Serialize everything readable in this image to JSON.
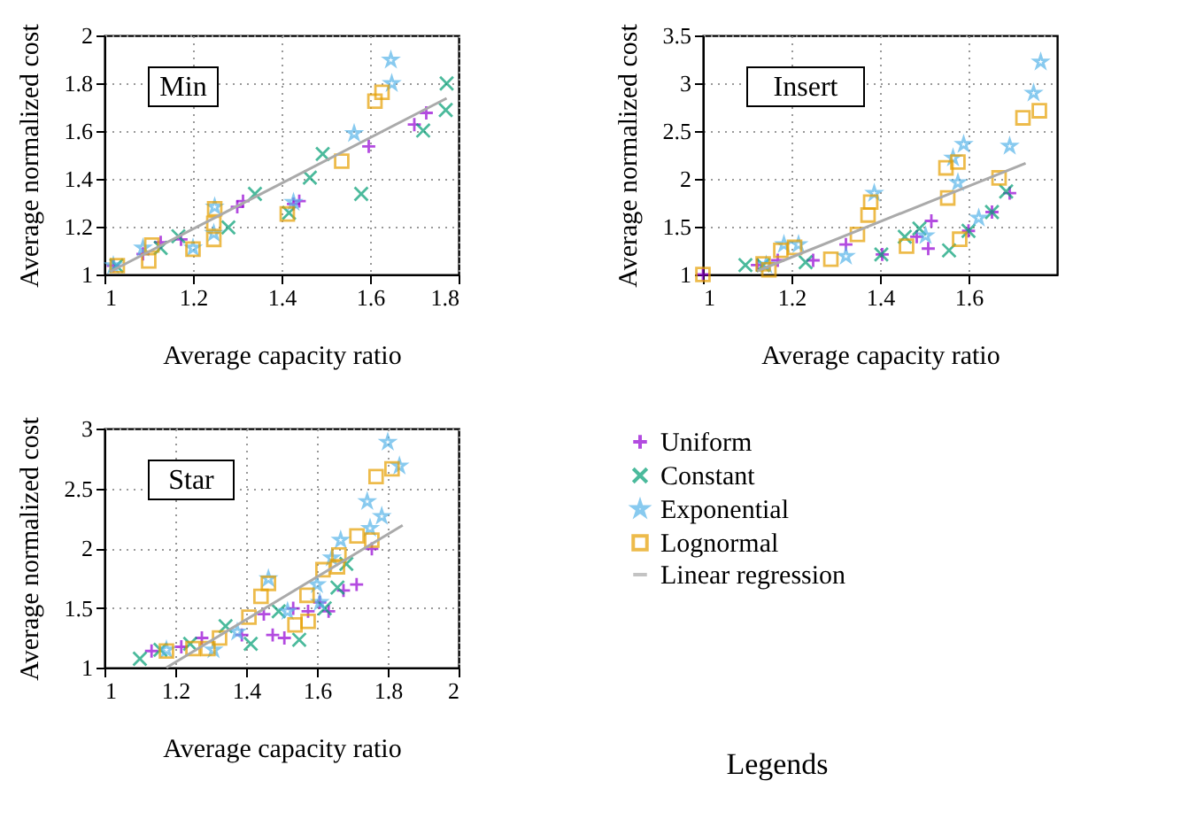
{
  "chart_data": [
    {
      "type": "scatter",
      "annotations": [
        "Min"
      ],
      "xlabel": "Average capacity ratio",
      "ylabel": "Average normalized cost",
      "xlim": [
        1,
        1.8
      ],
      "xticks": [
        1,
        1.2,
        1.4,
        1.6,
        1.8
      ],
      "ylim": [
        1,
        2
      ],
      "yticks": [
        1,
        1.2,
        1.4,
        1.6,
        1.8,
        2
      ],
      "grid": true,
      "series": [
        {
          "color": "#9400d3",
          "marker": "plus",
          "x": [
            1.727,
            1.7,
            1.597,
            1.44,
            1.427,
            1.313,
            1.3,
            1.173,
            1.127,
            1.087,
            1.02
          ],
          "values": [
            1.676,
            1.627,
            1.536,
            1.307,
            1.295,
            1.307,
            1.283,
            1.147,
            1.135,
            1.086,
            1.037
          ]
        },
        {
          "color": "#009e73",
          "marker": "cross",
          "x": [
            1.773,
            1.771,
            1.72,
            1.58,
            1.493,
            1.464,
            1.417,
            1.34,
            1.28,
            1.167,
            1.127,
            1.027
          ],
          "values": [
            1.799,
            1.688,
            1.602,
            1.337,
            1.504,
            1.405,
            1.258,
            1.337,
            1.197,
            1.16,
            1.111,
            1.037
          ]
        },
        {
          "color": "#56b4e9",
          "marker": "star",
          "x": [
            1.647,
            1.649,
            1.564,
            1.427,
            1.249,
            1.247,
            1.2,
            1.087,
            1.02
          ],
          "values": [
            1.897,
            1.799,
            1.59,
            1.302,
            1.283,
            1.172,
            1.111,
            1.111,
            1.037
          ]
        },
        {
          "color": "#e69f00",
          "marker": "square",
          "x": [
            1.627,
            1.611,
            1.536,
            1.413,
            1.249,
            1.247,
            1.247,
            1.2,
            1.107,
            1.1,
            1.029
          ],
          "values": [
            1.762,
            1.725,
            1.474,
            1.253,
            1.275,
            1.214,
            1.147,
            1.106,
            1.123,
            1.057,
            1.037
          ]
        },
        {
          "type": "line",
          "color": "#aaaaaa",
          "x": [
            1.013,
            1.773
          ],
          "values": [
            1.012,
            1.737
          ]
        }
      ]
    },
    {
      "type": "scatter",
      "annotations": [
        "Insert"
      ],
      "xlabel": "Average capacity ratio",
      "ylabel": "Average normalized cost",
      "xlim": [
        1,
        1.8
      ],
      "xticks": [
        1,
        1.2,
        1.4,
        1.6
      ],
      "ylim": [
        1,
        3.5
      ],
      "yticks": [
        1,
        1.5,
        2,
        2.5,
        3,
        3.5
      ],
      "grid": true,
      "series": [
        {
          "color": "#9400d3",
          "marker": "plus",
          "x": [
            1.693,
            1.653,
            1.6,
            1.516,
            1.509,
            1.483,
            1.405,
            1.323,
            1.249,
            1.169,
            1.123,
            1.0
          ],
          "values": [
            1.85,
            1.653,
            1.456,
            1.56,
            1.271,
            1.394,
            1.209,
            1.314,
            1.148,
            1.148,
            1.099,
            1.0
          ]
        },
        {
          "color": "#009e73",
          "marker": "cross",
          "x": [
            1.685,
            1.653,
            1.6,
            1.556,
            1.489,
            1.456,
            1.403,
            1.232,
            1.096,
            1.136
          ],
          "values": [
            1.868,
            1.653,
            1.456,
            1.252,
            1.48,
            1.394,
            1.209,
            1.129,
            1.099,
            1.099
          ]
        },
        {
          "color": "#56b4e9",
          "marker": "star",
          "x": [
            1.763,
            1.747,
            1.693,
            1.589,
            1.576,
            1.565,
            1.623,
            1.503,
            1.387,
            1.323,
            1.216,
            1.183,
            1.143
          ],
          "values": [
            3.223,
            2.897,
            2.342,
            2.361,
            1.961,
            2.219,
            1.591,
            1.406,
            1.85,
            1.191,
            1.314,
            1.314,
            1.099
          ]
        },
        {
          "color": "#e69f00",
          "marker": "square",
          "x": [
            1.76,
            1.723,
            1.669,
            1.549,
            1.576,
            1.553,
            1.58,
            1.46,
            1.379,
            1.373,
            1.349,
            1.289,
            1.207,
            1.176,
            1.136,
            1.149,
            1.0
          ],
          "values": [
            2.712,
            2.638,
            2.01,
            2.115,
            2.176,
            1.8,
            1.369,
            1.296,
            1.757,
            1.622,
            1.419,
            1.16,
            1.283,
            1.252,
            1.111,
            1.049,
            1.0
          ]
        },
        {
          "type": "line",
          "color": "#aaaaaa",
          "x": [
            1.123,
            1.729
          ],
          "values": [
            1.037,
            2.164
          ]
        }
      ]
    },
    {
      "type": "scatter",
      "annotations": [
        "Star",
        "Legends"
      ],
      "legend": "right",
      "xlabel": "Average capacity ratio",
      "ylabel": "Average normalized cost",
      "xlim": [
        1,
        2
      ],
      "xticks": [
        1,
        1.2,
        1.4,
        1.6,
        1.8,
        2
      ],
      "ylim": [
        1,
        3
      ],
      "yticks": [
        1,
        1.5,
        2,
        2.5,
        3
      ],
      "grid": true,
      "series": [
        {
          "name": "Uniform",
          "color": "#9400d3",
          "marker": "plus",
          "x": [
            1.755,
            1.712,
            1.675,
            1.633,
            1.608,
            1.575,
            1.533,
            1.508,
            1.475,
            1.45,
            1.388,
            1.275,
            1.217,
            1.133
          ],
          "values": [
            1.993,
            1.695,
            1.645,
            1.471,
            1.546,
            1.471,
            1.496,
            1.248,
            1.273,
            1.447,
            1.273,
            1.248,
            1.174,
            1.139
          ]
        },
        {
          "name": "Constant",
          "color": "#009e73",
          "marker": "cross",
          "x": [
            1.683,
            1.658,
            1.622,
            1.55,
            1.492,
            1.413,
            1.342,
            1.242,
            1.158,
            1.1
          ],
          "values": [
            1.868,
            1.67,
            1.496,
            1.233,
            1.471,
            1.199,
            1.347,
            1.199,
            1.149,
            1.074
          ]
        },
        {
          "name": "Exponential",
          "color": "#56b4e9",
          "marker": "star",
          "x": [
            1.8,
            1.833,
            1.742,
            1.783,
            1.75,
            1.667,
            1.642,
            1.6,
            1.608,
            1.517,
            1.463,
            1.375,
            1.308,
            1.175
          ],
          "values": [
            2.886,
            2.687,
            2.39,
            2.266,
            2.166,
            2.067,
            1.918,
            1.695,
            1.546,
            1.471,
            1.744,
            1.298,
            1.149,
            1.149
          ]
        },
        {
          "name": "Lognormal",
          "color": "#e69f00",
          "marker": "square",
          "x": [
            1.812,
            1.767,
            1.713,
            1.755,
            1.658,
            1.662,
            1.617,
            1.572,
            1.575,
            1.538,
            1.463,
            1.442,
            1.408,
            1.325,
            1.292,
            1.25,
            1.175
          ],
          "values": [
            2.663,
            2.598,
            2.102,
            2.067,
            1.844,
            1.943,
            1.819,
            1.605,
            1.387,
            1.357,
            1.705,
            1.596,
            1.422,
            1.248,
            1.159,
            1.159,
            1.139
          ]
        },
        {
          "name": "Linear regression",
          "type": "line",
          "color": "#aaaaaa",
          "x": [
            1.175,
            1.842
          ],
          "values": [
            1.0,
            2.191
          ]
        }
      ]
    }
  ]
}
